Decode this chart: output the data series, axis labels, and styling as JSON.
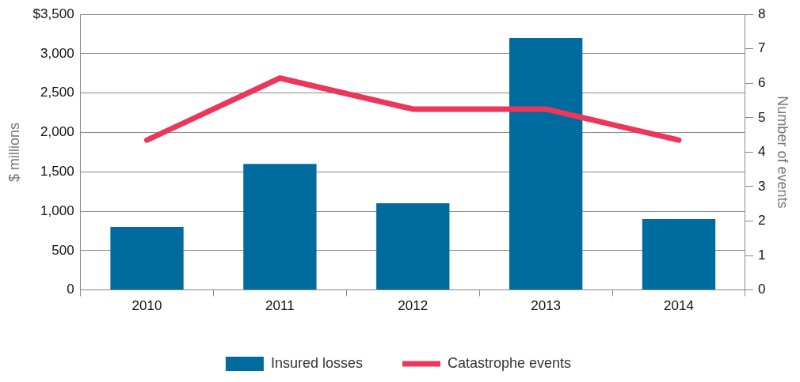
{
  "chart_data": {
    "type": "bar",
    "categories": [
      "2010",
      "2011",
      "2012",
      "2013",
      "2014"
    ],
    "series": [
      {
        "name": "Insured losses",
        "color": "#006b9f",
        "values": [
          800,
          1600,
          1100,
          3200,
          900
        ]
      },
      {
        "name": "Catastrophe events",
        "type": "line",
        "axis": "y2",
        "color": "#ec365a",
        "values": [
          4.35,
          6.15,
          5.25,
          5.25,
          4.35
        ]
      }
    ],
    "ylabel": "$ millions",
    "y2label": "Number of events",
    "ylim": [
      0,
      3500
    ],
    "yticks": [
      0,
      500,
      {
        "value": 1000,
        "label": "1,000"
      },
      {
        "value": 1500,
        "label": "1,500"
      },
      {
        "value": 2000,
        "label": "2,000"
      },
      {
        "value": 2500,
        "label": "2,500"
      },
      {
        "value": 3000,
        "label": "3,000"
      },
      {
        "value": 3500,
        "label": "$3,500"
      }
    ],
    "y2lim": [
      0,
      8
    ],
    "y2ticks": [
      0,
      1,
      2,
      3,
      4,
      5,
      6,
      7,
      8
    ],
    "grid": "y",
    "legend": "bottom",
    "marker": "none",
    "line_style": "solid"
  }
}
